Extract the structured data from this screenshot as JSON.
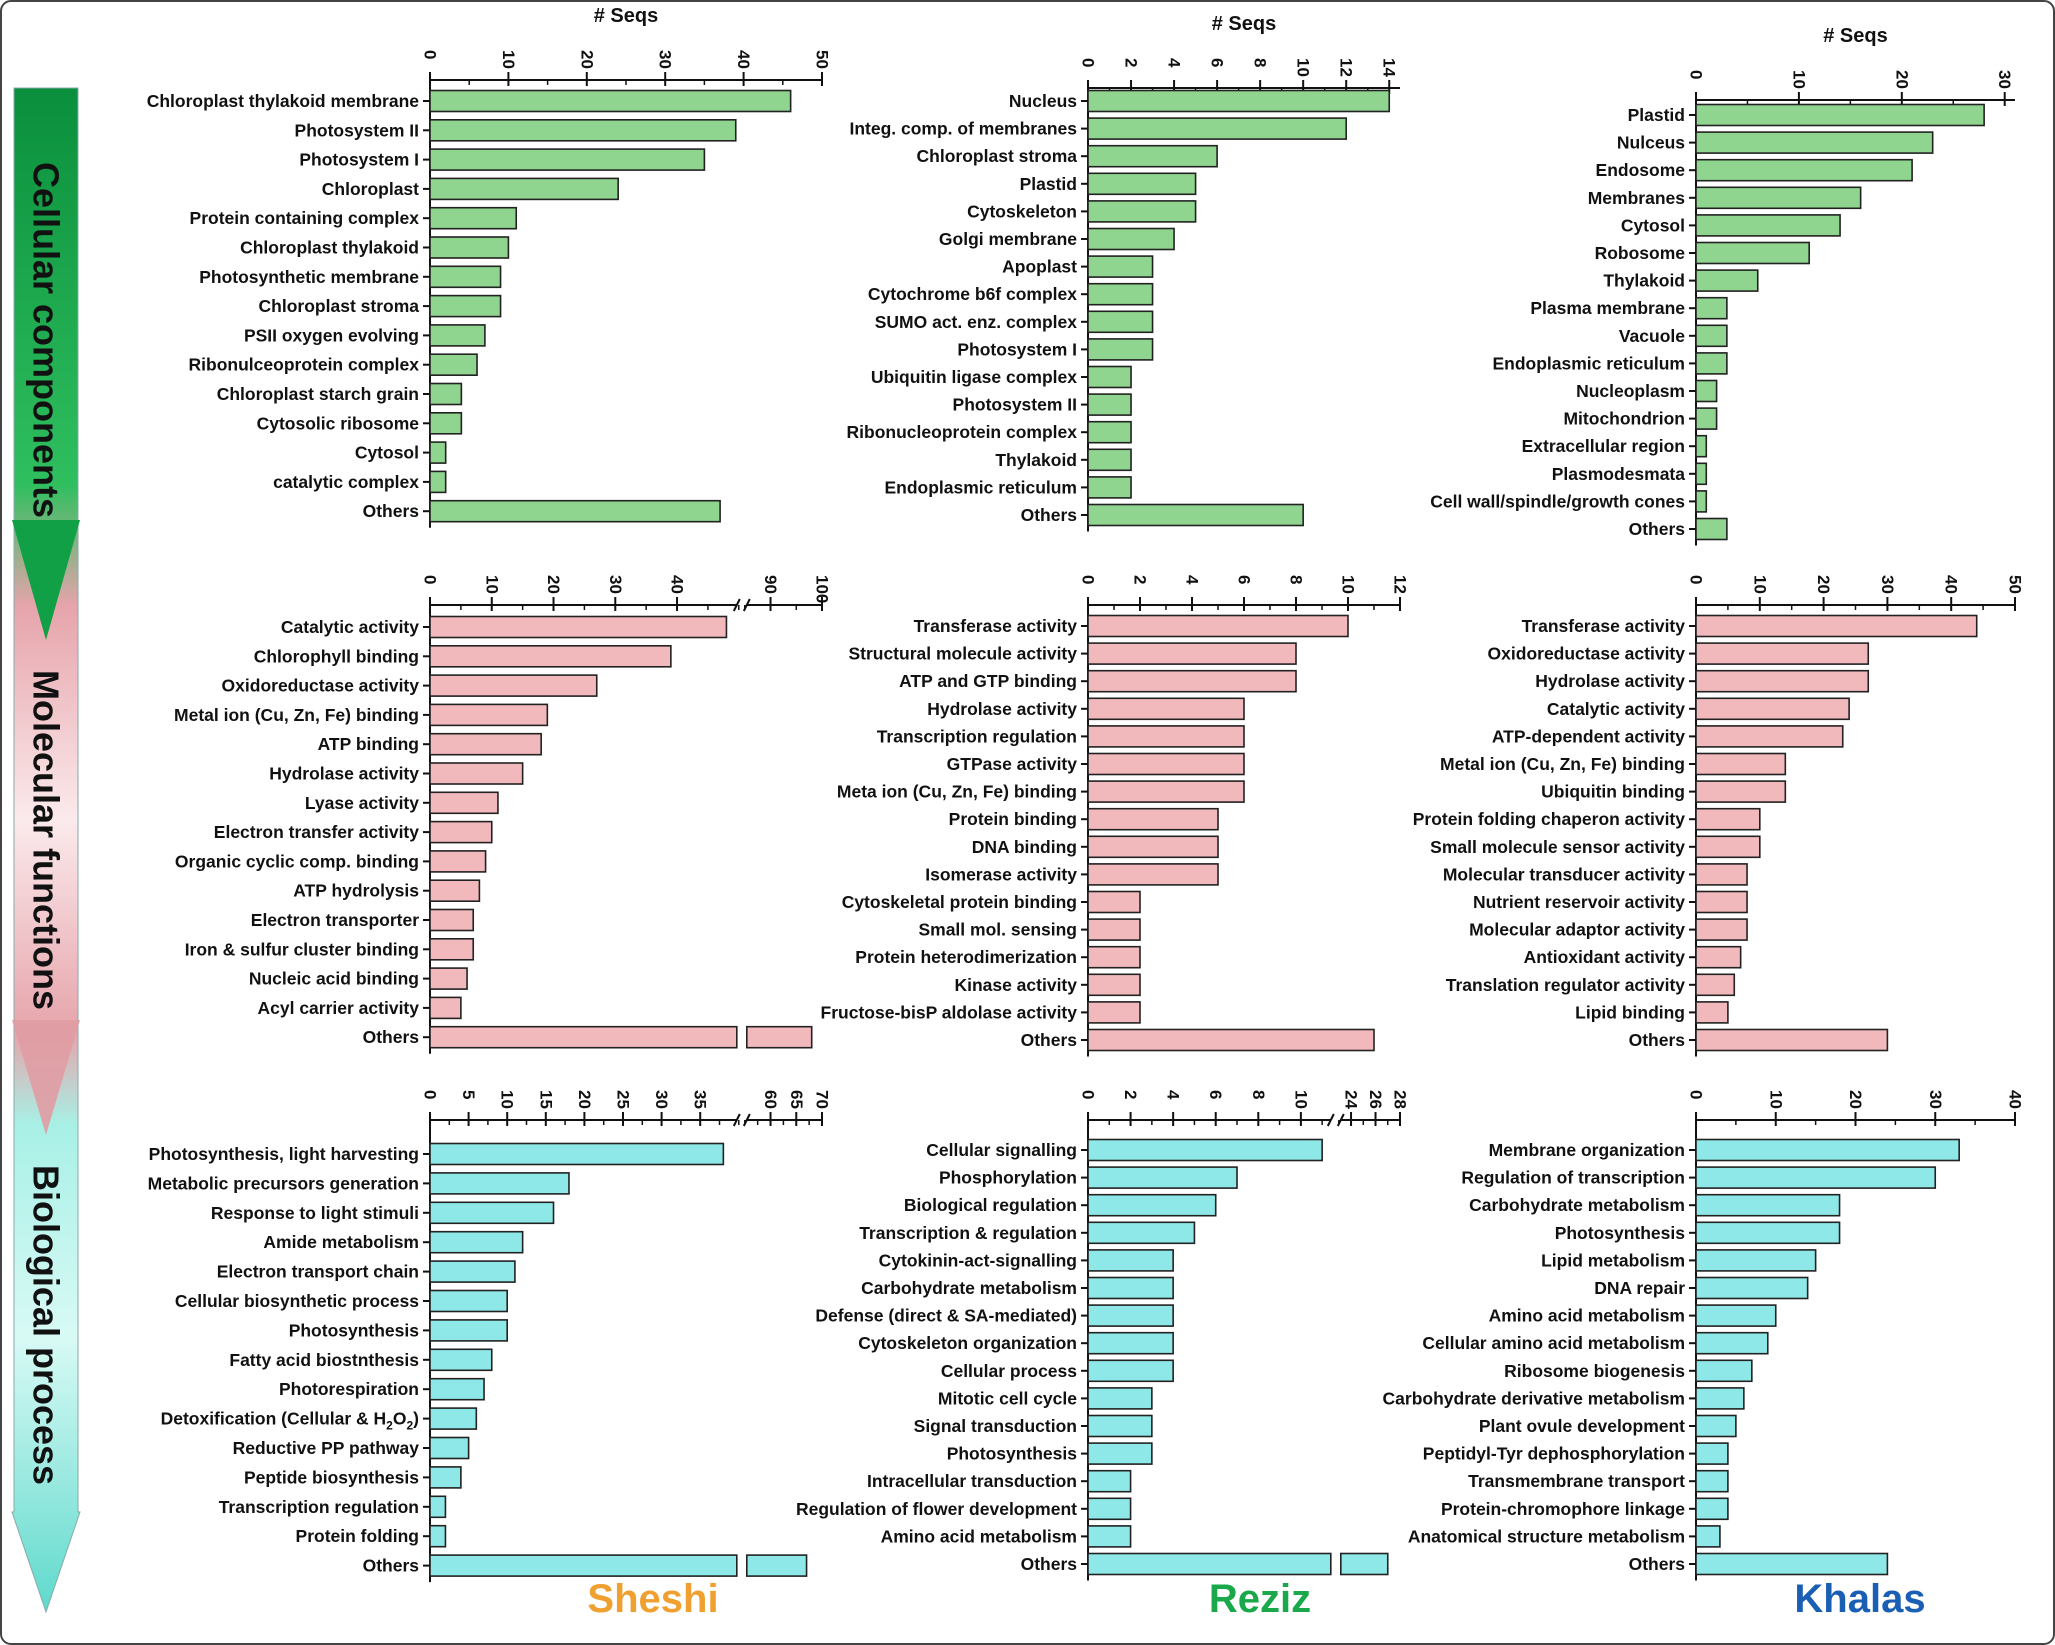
{
  "colors": {
    "green": "#8fd48f",
    "pink": "#f2b9bd",
    "cyan": "#8fe8e8",
    "bar_border": "#222222",
    "sheshi": "#f0a030",
    "reziz": "#1aa84a",
    "khalas": "#1a5fb4"
  },
  "arrow_sections": [
    {
      "label": "Cellular components",
      "color": "#12a046"
    },
    {
      "label": "Molecular functions",
      "color": "#e2a2a9"
    },
    {
      "label": "Biological process",
      "color": "#5fd9cc"
    }
  ],
  "cultivars": [
    "Sheshi",
    "Reziz",
    "Khalas"
  ],
  "chart_data": [
    {
      "type": "bar",
      "orientation": "horizontal",
      "row": "cellular",
      "col": "Sheshi",
      "title": "# Seqs",
      "xlim": [
        0,
        50
      ],
      "ticks": [
        0,
        10,
        20,
        30,
        40,
        50
      ],
      "categories": [
        "Chloroplast thylakoid membrane",
        "Photosystem II",
        "Photosystem I",
        "Chloroplast",
        "Protein containing complex",
        "Chloroplast thylakoid",
        "Photosynthetic membrane",
        "Chloroplast stroma",
        "PSII oxygen evolving",
        "Ribonulceoprotein complex",
        "Chloroplast starch grain",
        "Cytosolic ribosome",
        "Cytosol",
        "catalytic complex",
        "Others"
      ],
      "values": [
        46,
        39,
        35,
        24,
        11,
        10,
        9,
        9,
        7,
        6,
        4,
        4,
        2,
        2,
        37
      ]
    },
    {
      "type": "bar",
      "orientation": "horizontal",
      "row": "cellular",
      "col": "Reziz",
      "title": "# Seqs",
      "xlim": [
        0,
        14.5
      ],
      "ticks": [
        0,
        2,
        4,
        6,
        8,
        10,
        12,
        14
      ],
      "categories": [
        "Nucleus",
        "Integ. comp. of membranes",
        "Chloroplast stroma",
        "Plastid",
        "Cytoskeleton",
        "Golgi membrane",
        "Apoplast",
        "Cytochrome b6f complex",
        "SUMO act. enz. complex",
        "Photosystem I",
        "Ubiquitin ligase complex",
        "Photosystem II",
        "Ribonucleoprotein complex",
        "Thylakoid",
        "Endoplasmic reticulum",
        "Others"
      ],
      "values": [
        14,
        12,
        6,
        5,
        5,
        4,
        3,
        3,
        3,
        3,
        2,
        2,
        2,
        2,
        2,
        10
      ]
    },
    {
      "type": "bar",
      "orientation": "horizontal",
      "row": "cellular",
      "col": "Khalas",
      "title": "# Seqs",
      "xlim": [
        0,
        31
      ],
      "ticks": [
        0,
        10,
        20,
        30
      ],
      "categories": [
        "Plastid",
        "Nulceus",
        "Endosome",
        "Membranes",
        "Cytosol",
        "Robosome",
        "Thylakoid",
        "Plasma membrane",
        "Vacuole",
        "Endoplasmic reticulum",
        "Nucleoplasm",
        "Mitochondrion",
        "Extracellular region",
        "Plasmodesmata",
        "Cell wall/spindle/growth cones",
        "Others"
      ],
      "values": [
        28,
        23,
        21,
        16,
        14,
        11,
        6,
        3,
        3,
        3,
        2,
        2,
        1,
        1,
        1,
        3
      ]
    },
    {
      "type": "bar",
      "orientation": "horizontal",
      "row": "molecular",
      "col": "Sheshi",
      "xlim": [
        0,
        100
      ],
      "ticks": [
        0,
        10,
        20,
        30,
        40,
        90,
        100
      ],
      "axis_break": [
        50,
        85
      ],
      "categories": [
        "Catalytic activity",
        "Chlorophyll binding",
        "Oxidoreductase activity",
        "Metal ion (Cu, Zn, Fe) binding",
        "ATP binding",
        "Hydrolase activity",
        "Lyase activity",
        "Electron transfer activity",
        "Organic cyclic comp. binding",
        "ATP hydrolysis",
        "Electron transporter",
        "Iron & sulfur cluster binding",
        "Nucleic acid binding",
        "Acyl carrier activity",
        "Others"
      ],
      "values": [
        48,
        39,
        27,
        19,
        18,
        15,
        11,
        10,
        9,
        8,
        7,
        7,
        6,
        5,
        98
      ]
    },
    {
      "type": "bar",
      "orientation": "horizontal",
      "row": "molecular",
      "col": "Reziz",
      "xlim": [
        0,
        12
      ],
      "ticks": [
        0,
        2,
        4,
        6,
        8,
        10,
        12
      ],
      "categories": [
        "Transferase activity",
        "Structural molecule activity",
        "ATP and GTP binding",
        "Hydrolase activity",
        "Transcription regulation",
        "GTPase activity",
        "Meta ion (Cu, Zn, Fe) binding",
        "Protein binding",
        "DNA binding",
        "Isomerase activity",
        "Cytoskeletal protein binding",
        "Small mol. sensing",
        "Protein heterodimerization",
        "Kinase activity",
        "Fructose-bisP aldolase activity",
        "Others"
      ],
      "values": [
        10,
        8,
        8,
        6,
        6,
        6,
        6,
        5,
        5,
        5,
        2,
        2,
        2,
        2,
        2,
        11
      ]
    },
    {
      "type": "bar",
      "orientation": "horizontal",
      "row": "molecular",
      "col": "Khalas",
      "xlim": [
        0,
        50
      ],
      "ticks": [
        0,
        10,
        20,
        30,
        40,
        50
      ],
      "categories": [
        "Transferase activity",
        "Oxidoreductase activity",
        "Hydrolase activity",
        "Catalytic activity",
        "ATP-dependent activity",
        "Metal ion (Cu, Zn, Fe) binding",
        "Ubiquitin binding",
        "Protein folding chaperon activity",
        "Small molecule sensor activity",
        "Molecular transducer activity",
        "Nutrient reservoir activity",
        "Molecular adaptor activity",
        "Antioxidant activity",
        "Translation regulator activity",
        "Lipid binding",
        "Others"
      ],
      "values": [
        44,
        27,
        27,
        24,
        23,
        14,
        14,
        10,
        10,
        8,
        8,
        8,
        7,
        6,
        5,
        30
      ]
    },
    {
      "type": "bar",
      "orientation": "horizontal",
      "row": "biological",
      "col": "Sheshi",
      "xlim": [
        0,
        70
      ],
      "ticks": [
        0,
        5,
        10,
        15,
        20,
        25,
        30,
        35,
        60,
        65,
        70
      ],
      "axis_break": [
        40,
        55
      ],
      "categories": [
        "Photosynthesis, light harvesting",
        "Metabolic precursors generation",
        "Response to light stimuli",
        "Amide metabolism",
        "Electron transport chain",
        "Cellular biosynthetic process",
        "Photosynthesis",
        "Fatty acid biostnthesis",
        "Photorespiration",
        "Detoxification (Cellular & H2O2)",
        "Reductive PP pathway",
        "Peptide biosynthesis",
        "Transcription regulation",
        "Protein folding",
        "Others"
      ],
      "values": [
        38,
        18,
        16,
        12,
        11,
        10,
        10,
        8,
        7,
        6,
        5,
        4,
        2,
        2,
        67
      ]
    },
    {
      "type": "bar",
      "orientation": "horizontal",
      "row": "biological",
      "col": "Reziz",
      "xlim": [
        0,
        28
      ],
      "ticks": [
        0,
        2,
        4,
        6,
        8,
        10,
        24,
        26,
        28
      ],
      "axis_break": [
        11.5,
        23
      ],
      "categories": [
        "Cellular signalling",
        "Phosphorylation",
        "Biological regulation",
        "Transcription & regulation",
        "Cytokinin-act-signalling",
        "Carbohydrate metabolism",
        "Defense (direct & SA-mediated)",
        "Cytoskeleton organization",
        "Cellular process",
        "Mitotic cell cycle",
        "Signal transduction",
        "Photosynthesis",
        "Intracellular transduction",
        "Regulation of flower development",
        "Amino acid metabolism",
        "Others"
      ],
      "values": [
        11,
        7,
        6,
        5,
        4,
        4,
        4,
        4,
        4,
        3,
        3,
        3,
        2,
        2,
        2,
        27
      ]
    },
    {
      "type": "bar",
      "orientation": "horizontal",
      "row": "biological",
      "col": "Khalas",
      "xlim": [
        0,
        40
      ],
      "ticks": [
        0,
        10,
        20,
        30,
        40
      ],
      "categories": [
        "Membrane organization",
        "Regulation of transcription",
        "Carbohydrate metabolism",
        "Photosynthesis",
        "Lipid metabolism",
        "DNA repair",
        "Amino acid metabolism",
        "Cellular amino acid metabolism",
        "Ribosome biogenesis",
        "Carbohydrate derivative metabolism",
        "Plant ovule development",
        "Peptidyl-Tyr dephosphorylation",
        "Transmembrane transport",
        "Protein-chromophore linkage",
        "Anatomical structure metabolism",
        "Others"
      ],
      "values": [
        33,
        30,
        18,
        18,
        15,
        14,
        10,
        9,
        7,
        6,
        5,
        4,
        4,
        4,
        3,
        24
      ]
    }
  ]
}
